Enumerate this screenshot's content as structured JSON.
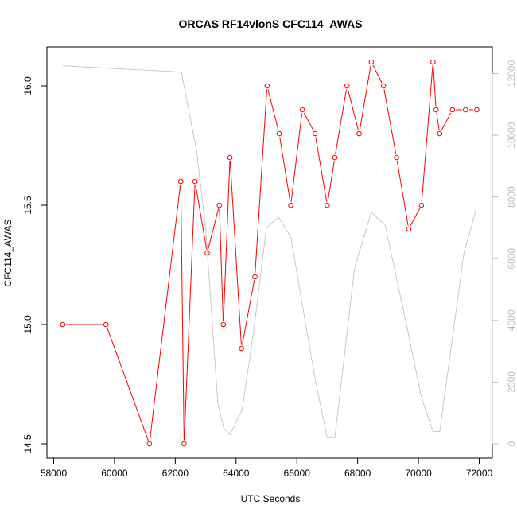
{
  "colors": {
    "primary_series": "#ff0000",
    "secondary_series": "#c8c8c8",
    "axis": "#000000",
    "right_axis": "#bdbdbd",
    "background": "#ffffff"
  },
  "chart_data": {
    "type": "line",
    "title": "ORCAS RF14vlonS CFC114_AWAS",
    "xlabel": "UTC Seconds",
    "ylabel": "CFC114_AWAS",
    "y2label": "",
    "xlim": [
      58000,
      72000
    ],
    "ylim": [
      14.5,
      16.2
    ],
    "y2lim": [
      0,
      12500
    ],
    "x_ticks": [
      58000,
      60000,
      62000,
      64000,
      66000,
      68000,
      70000,
      72000
    ],
    "y_ticks": [
      14.5,
      15.0,
      15.5,
      16.0
    ],
    "y_tick_labels": [
      "14.5",
      "15.0",
      "15.5",
      "16.0"
    ],
    "y2_ticks": [
      0,
      2000,
      4000,
      6000,
      8000,
      10000,
      12000
    ],
    "grid": false,
    "series": [
      {
        "axis": "left",
        "style": "line+points",
        "color": "#ff0000",
        "x": [
          58300,
          59720,
          61150,
          62180,
          62290,
          62650,
          63050,
          63450,
          63580,
          63800,
          64180,
          64620,
          65020,
          65420,
          65800,
          66180,
          66600,
          67000,
          67250,
          67650,
          68050,
          68450,
          68850,
          69280,
          69680,
          70100,
          70480,
          70580,
          70700,
          71120,
          71550,
          71920
        ],
        "y": [
          15.0,
          15.0,
          14.5,
          15.6,
          14.5,
          15.6,
          15.3,
          15.5,
          15.0,
          15.7,
          14.9,
          15.2,
          16.0,
          15.8,
          15.5,
          15.9,
          15.8,
          15.5,
          15.7,
          16.0,
          15.8,
          16.1,
          16.0,
          15.7,
          15.4,
          15.5,
          16.1,
          15.9,
          15.8,
          15.9,
          15.9,
          15.9
        ]
      },
      {
        "axis": "right",
        "style": "line",
        "color": "#c8c8c8",
        "x": [
          58300,
          62200,
          62700,
          63000,
          63400,
          63600,
          63800,
          64200,
          64600,
          65000,
          65400,
          65800,
          66600,
          67000,
          67250,
          67900,
          68450,
          68900,
          69600,
          70100,
          70480,
          70700,
          71500,
          71900
        ],
        "y": [
          12250,
          12050,
          9500,
          7000,
          1300,
          500,
          300,
          1100,
          3800,
          7000,
          7350,
          6700,
          2100,
          200,
          200,
          5700,
          7500,
          7100,
          3900,
          1500,
          400,
          400,
          6200,
          7600
        ]
      }
    ]
  }
}
